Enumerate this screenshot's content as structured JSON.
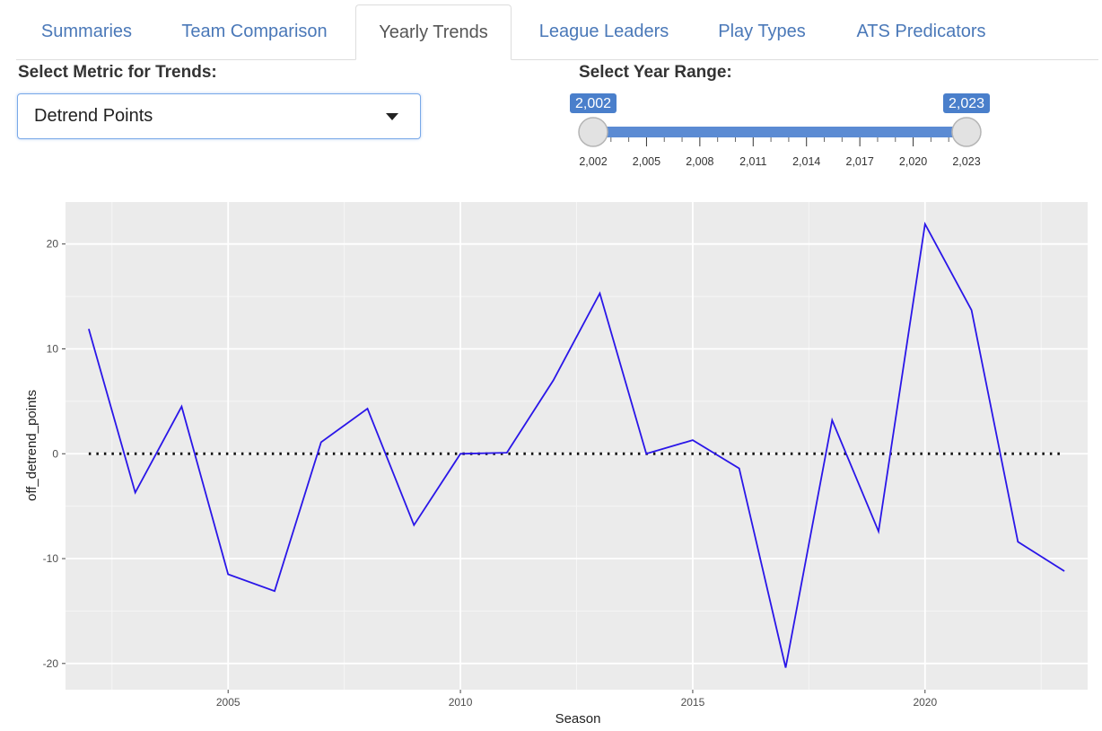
{
  "tabs": [
    {
      "label": "Summaries",
      "active": false
    },
    {
      "label": "Team Comparison",
      "active": false
    },
    {
      "label": "Yearly Trends",
      "active": true
    },
    {
      "label": "League Leaders",
      "active": false
    },
    {
      "label": "Play Types",
      "active": false
    },
    {
      "label": "ATS Predicators",
      "active": false
    }
  ],
  "metric": {
    "label": "Select Metric for Trends:",
    "selected": "Detrend Points"
  },
  "year_range": {
    "label": "Select Year Range:",
    "min": 2002,
    "max": 2023,
    "from": 2002,
    "to": 2023,
    "from_label": "2,002",
    "to_label": "2,023",
    "tick_labels": [
      "2,002",
      "2,005",
      "2,008",
      "2,011",
      "2,014",
      "2,017",
      "2,020",
      "2,023"
    ],
    "accent": "#5b8bd3"
  },
  "chart_data": {
    "type": "line",
    "xlabel": "Season",
    "ylabel": "off_detrend_points",
    "xlim": [
      2001.5,
      2023.5
    ],
    "ylim": [
      -22.5,
      24
    ],
    "x_ticks": [
      2005,
      2010,
      2015,
      2020
    ],
    "x_tick_labels": [
      "2005",
      "2010",
      "2015",
      "2020"
    ],
    "y_ticks": [
      -20,
      -10,
      0,
      10,
      20
    ],
    "y_tick_labels": [
      "-20",
      "-10",
      "0",
      "10",
      "20"
    ],
    "grid": true,
    "background": "#ebebeb",
    "series": [
      {
        "color": "#2a16e8",
        "x": [
          2002,
          2003,
          2004,
          2005,
          2006,
          2007,
          2008,
          2009,
          2010,
          2011,
          2012,
          2013,
          2014,
          2015,
          2016,
          2017,
          2018,
          2019,
          2020,
          2021,
          2022,
          2023
        ],
        "values": [
          11.9,
          -3.7,
          4.5,
          -11.5,
          -13.1,
          1.1,
          4.3,
          -6.8,
          0.0,
          0.1,
          7.0,
          15.3,
          0.0,
          1.3,
          -1.4,
          -20.4,
          3.2,
          -7.4,
          21.9,
          13.7,
          -8.4,
          -11.2
        ]
      }
    ],
    "reference_line": {
      "y": 0,
      "x_from": 2002,
      "x_to": 2023,
      "style": "dotted",
      "color": "#111111"
    }
  }
}
